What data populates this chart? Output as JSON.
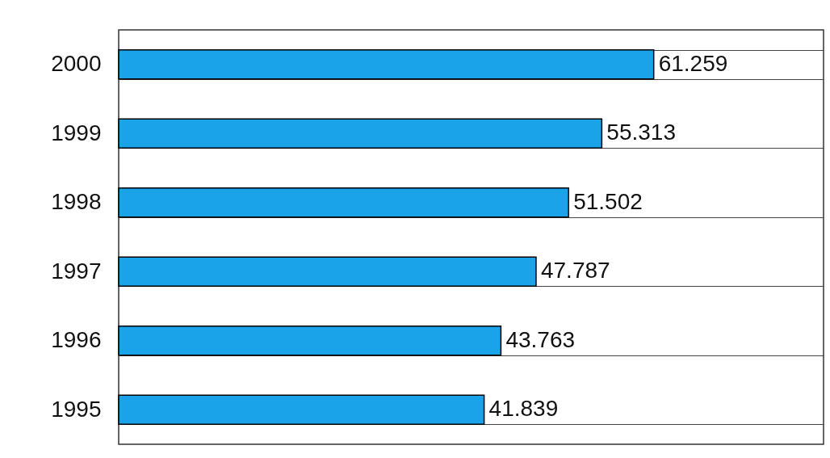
{
  "chart_data": {
    "type": "bar",
    "orientation": "horizontal",
    "categories": [
      "2000",
      "1999",
      "1998",
      "1997",
      "1996",
      "1995"
    ],
    "values": [
      61.259,
      55.313,
      51.502,
      47.787,
      43.763,
      41.839
    ],
    "color": "#1aa3e8",
    "xlim": [
      0,
      80.7
    ],
    "data_labels": true,
    "grid": "y",
    "tick_labels": "y"
  }
}
